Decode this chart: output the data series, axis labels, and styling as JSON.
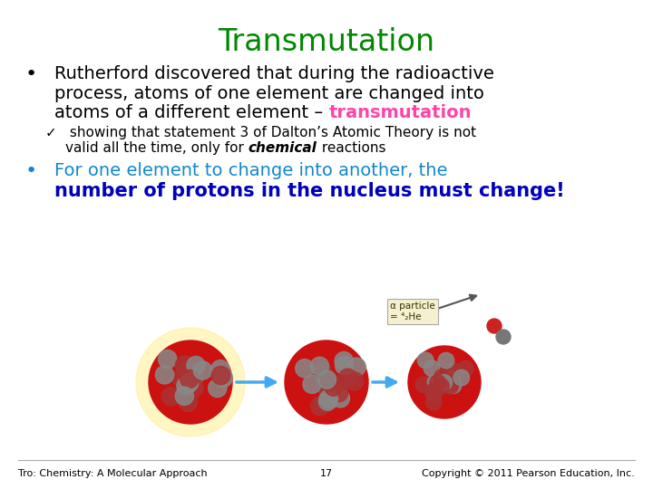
{
  "title": "Transmutation",
  "title_color": "#008800",
  "title_fontsize": 24,
  "background_color": "#FFFFFF",
  "line1": "Rutherford discovered that during the radioactive",
  "line2": "process, atoms of one element are changed into",
  "line3_black": "atoms of a different element – ",
  "line3_magenta": "transmutation",
  "check_line1": " showing that statement 3 of Dalton’s Atomic Theory is not",
  "check_line2a": "valid all the time, only for ",
  "check_line2b": "chemical",
  "check_line2c": " reactions",
  "bullet2_line1": "For one element to change into another, the",
  "bullet2_line2": "number of protons in the nucleus must change!",
  "bullet2_color": "#1188CC",
  "bullet2_bold_color": "#0000BB",
  "footer_left": "Tro: Chemistry: A Molecular Approach",
  "footer_center": "17",
  "footer_right": "Copyright © 2011 Pearson Education, Inc.",
  "footer_color": "#000000",
  "footer_fontsize": 8,
  "body_fontsize": 14,
  "sub_fontsize": 11,
  "magenta_color": "#FF44AA",
  "black": "#000000",
  "bullet_dot_size": 16
}
